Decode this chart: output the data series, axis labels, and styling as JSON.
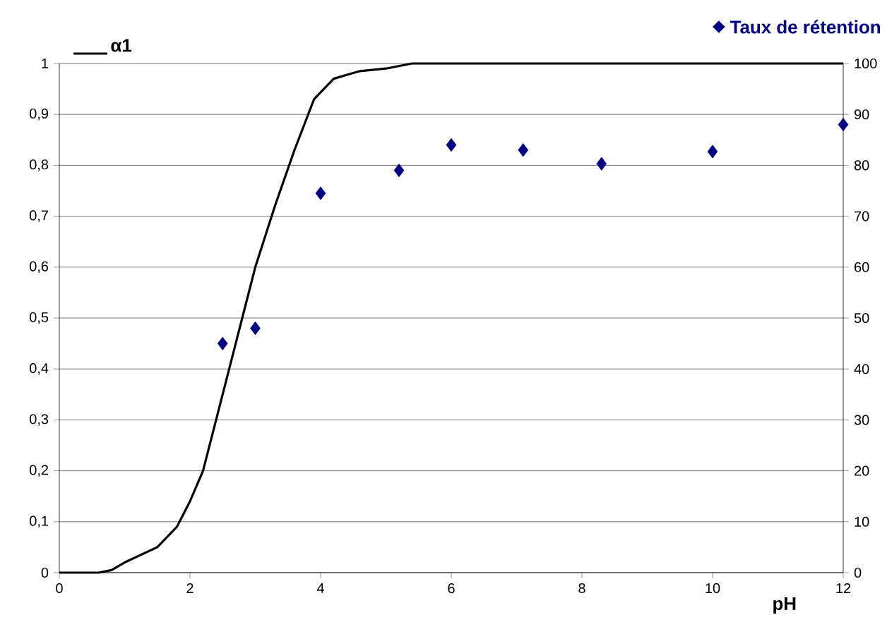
{
  "chart_data": {
    "type": "line",
    "xlabel": "pH",
    "xlim": [
      0,
      12
    ],
    "xticks": [
      0,
      2,
      4,
      6,
      8,
      10,
      12
    ],
    "ylim": [
      0,
      1
    ],
    "yticks": [
      0,
      {
        "value": 0.1,
        "label": "0,1"
      },
      {
        "value": 0.2,
        "label": "0,2"
      },
      {
        "value": 0.3,
        "label": "0,3"
      },
      {
        "value": 0.4,
        "label": "0,4"
      },
      {
        "value": 0.5,
        "label": "0,5"
      },
      {
        "value": 0.6,
        "label": "0,6"
      },
      {
        "value": 0.7,
        "label": "0,7"
      },
      {
        "value": 0.8,
        "label": "0,8"
      },
      {
        "value": 0.9,
        "label": "0,9"
      },
      1
    ],
    "y2lim": [
      0,
      100
    ],
    "y2ticks": [
      0,
      10,
      20,
      30,
      40,
      50,
      60,
      70,
      80,
      90,
      100
    ],
    "grid": "y",
    "legend": "top",
    "series": [
      {
        "name": "α1",
        "color": "#000000",
        "line_style": "solid",
        "x": [
          0,
          0.6,
          0.8,
          1.0,
          1.5,
          1.8,
          2.0,
          2.2,
          2.4,
          2.6,
          2.8,
          3.0,
          3.3,
          3.6,
          3.9,
          4.2,
          4.6,
          5.0,
          5.4,
          12
        ],
        "values": [
          0,
          0,
          0.005,
          0.02,
          0.05,
          0.09,
          0.14,
          0.2,
          0.3,
          0.4,
          0.5,
          0.6,
          0.72,
          0.83,
          0.93,
          0.97,
          0.985,
          0.99,
          1,
          1
        ]
      },
      {
        "name": "Taux de rétention",
        "type": "scatter",
        "axis": "y2",
        "marker": "diamond",
        "color": "#000080",
        "x": [
          2.5,
          3.0,
          4.0,
          5.2,
          6.0,
          7.1,
          8.3,
          10.0,
          12.0
        ],
        "values": [
          45,
          48,
          74.5,
          79,
          84,
          83,
          80.3,
          82.7,
          88
        ]
      }
    ]
  }
}
